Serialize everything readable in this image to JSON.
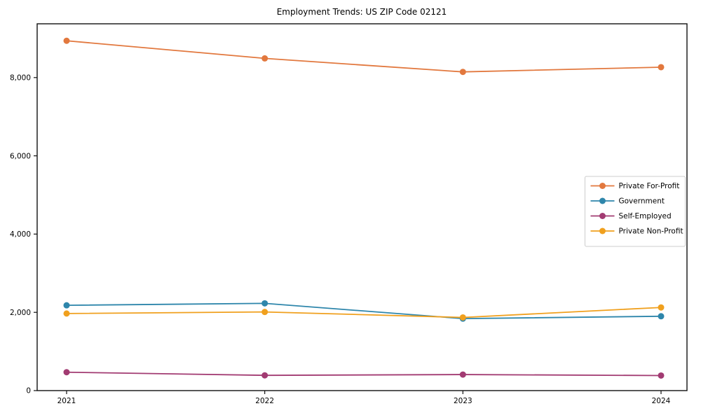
{
  "figure": {
    "title": "Employment Trends: US ZIP Code 02121"
  },
  "chart_data": {
    "type": "line",
    "title": "Employment Trends: US ZIP Code 02121",
    "x": [
      "2021",
      "2022",
      "2023",
      "2024"
    ],
    "series": [
      {
        "name": "Private For-Profit",
        "color": "#e2783e",
        "values": [
          8940,
          8490,
          8145,
          8265
        ]
      },
      {
        "name": "Government",
        "color": "#2e86ab",
        "values": [
          2180,
          2230,
          1840,
          1900
        ]
      },
      {
        "name": "Self-Employed",
        "color": "#a23b72",
        "values": [
          470,
          390,
          410,
          385
        ]
      },
      {
        "name": "Private Non-Profit",
        "color": "#f0a01e",
        "values": [
          1970,
          2010,
          1870,
          2125
        ]
      }
    ],
    "xlabel": "",
    "ylabel": "",
    "ylim": [
      0,
      9390
    ],
    "yticks": [
      0,
      2000,
      4000,
      6000,
      8000
    ],
    "ytick_labels": [
      "0",
      "2,000",
      "4,000",
      "6,000",
      "8,000"
    ],
    "xtick_labels": [
      "2021",
      "2022",
      "2023",
      "2024"
    ],
    "grid": false,
    "marker": "circle",
    "legend": {
      "position": "center-right"
    }
  }
}
